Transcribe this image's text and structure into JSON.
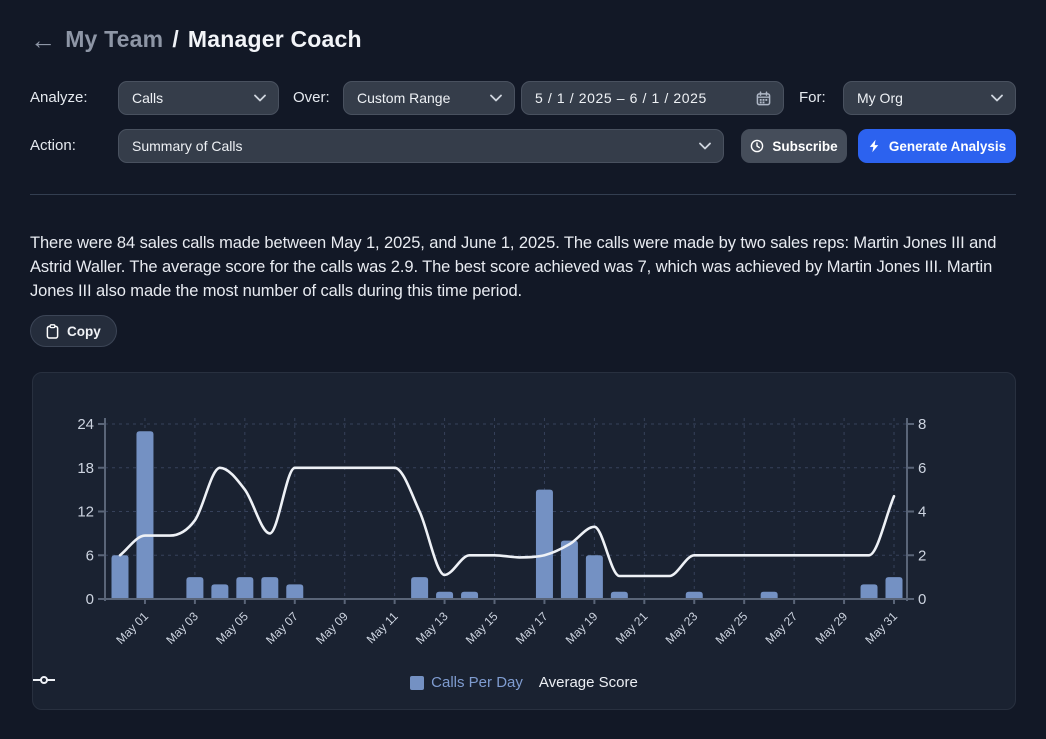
{
  "header": {
    "back_arrow": "←",
    "breadcrumb_parent": "My Team",
    "separator": "/",
    "title": "Manager Coach"
  },
  "filters": {
    "analyze_label": "Analyze:",
    "analyze_value": "Calls",
    "over_label": "Over:",
    "over_value": "Custom Range",
    "date_range": "5 / 1 / 2025  –  6 / 1 / 2025",
    "for_label": "For:",
    "for_value": "My Org",
    "action_label": "Action:",
    "action_value": "Summary of Calls",
    "subscribe_label": "Subscribe",
    "generate_label": "Generate Analysis"
  },
  "summary": {
    "text": "There were 84 sales calls made between May 1, 2025, and June 1, 2025. The calls were made by two sales reps: Martin Jones III and Astrid Waller. The average score for the calls was 2.9. The best score achieved was 7, which was achieved by Martin Jones III. Martin Jones III also made the most number of calls during this time period.",
    "copy_label": "Copy"
  },
  "colors": {
    "page_bg": "#121826",
    "card_bg": "#1a2231",
    "accent_blue": "#2c62ef",
    "bar_fill": "#7491c3",
    "line_stroke": "#eef1f6",
    "grid": "#36415a",
    "axis": "#5a6578",
    "tick_text": "#cdd4e0",
    "legend_calls_text": "#7f9cd0"
  },
  "chart_data": {
    "type": "bar+line",
    "title": "",
    "categories": [
      "Apr 30",
      "May 01",
      "May 02",
      "May 03",
      "May 04",
      "May 05",
      "May 06",
      "May 07",
      "May 08",
      "May 09",
      "May 10",
      "May 11",
      "May 12",
      "May 13",
      "May 14",
      "May 15",
      "May 16",
      "May 17",
      "May 18",
      "May 19",
      "May 20",
      "May 21",
      "May 22",
      "May 23",
      "May 24",
      "May 25",
      "May 26",
      "May 27",
      "May 28",
      "May 29",
      "May 30",
      "May 31"
    ],
    "x_ticks": [
      {
        "index": 1,
        "label": "May 01"
      },
      {
        "index": 3,
        "label": "May 03"
      },
      {
        "index": 5,
        "label": "May 05"
      },
      {
        "index": 7,
        "label": "May 07"
      },
      {
        "index": 9,
        "label": "May 09"
      },
      {
        "index": 11,
        "label": "May 11"
      },
      {
        "index": 13,
        "label": "May 13"
      },
      {
        "index": 15,
        "label": "May 15"
      },
      {
        "index": 17,
        "label": "May 17"
      },
      {
        "index": 19,
        "label": "May 19"
      },
      {
        "index": 21,
        "label": "May 21"
      },
      {
        "index": 23,
        "label": "May 23"
      },
      {
        "index": 25,
        "label": "May 25"
      },
      {
        "index": 27,
        "label": "May 27"
      },
      {
        "index": 29,
        "label": "May 29"
      },
      {
        "index": 31,
        "label": "May 31"
      }
    ],
    "series": [
      {
        "name": "Calls Per Day",
        "type": "bar",
        "axis": "left",
        "values": [
          6,
          23,
          0,
          3,
          2,
          3,
          3,
          2,
          0,
          0,
          0,
          0,
          3,
          1,
          1,
          0,
          0,
          15,
          8,
          6,
          1,
          0,
          0,
          1,
          0,
          0,
          1,
          0,
          0,
          0,
          2,
          3
        ]
      },
      {
        "name": "Average Score",
        "type": "line",
        "axis": "right",
        "values": [
          2.0,
          2.9,
          2.9,
          3.6,
          6,
          5,
          3,
          6,
          6,
          6,
          6,
          6,
          4,
          1.1,
          2,
          2,
          1.9,
          2,
          2.5,
          3.3,
          1.05,
          1.05,
          1.05,
          2,
          2,
          2,
          2,
          2,
          2,
          2,
          2,
          4.7
        ]
      }
    ],
    "left_axis": {
      "min": 0,
      "max": 24,
      "ticks": [
        0,
        6,
        12,
        18,
        24
      ]
    },
    "right_axis": {
      "min": 0,
      "max": 8,
      "ticks": [
        0,
        2,
        4,
        6,
        8
      ]
    },
    "grid": true,
    "legend_position": "bottom"
  }
}
